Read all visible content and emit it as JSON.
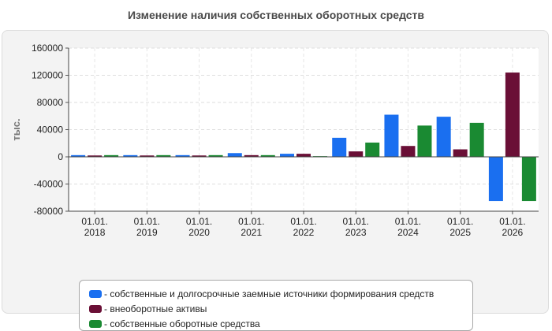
{
  "chart_data": {
    "type": "bar",
    "title": "Изменение наличия собственных оборотных средств",
    "ylabel": "тыс.",
    "xlabel": "",
    "ylim": [
      -80000,
      160000
    ],
    "yticks": [
      160000,
      120000,
      80000,
      40000,
      0,
      -40000,
      -80000
    ],
    "grid": true,
    "legend_position": "bottom",
    "categories": [
      {
        "line1": "01.01.",
        "line2": "2018"
      },
      {
        "line1": "01.01.",
        "line2": "2019"
      },
      {
        "line1": "01.01.",
        "line2": "2020"
      },
      {
        "line1": "01.01.",
        "line2": "2021"
      },
      {
        "line1": "01.01.",
        "line2": "2022"
      },
      {
        "line1": "01.01.",
        "line2": "2023"
      },
      {
        "line1": "01.01.",
        "line2": "2024"
      },
      {
        "line1": "01.01.",
        "line2": "2025"
      },
      {
        "line1": "01.01.",
        "line2": "2026"
      }
    ],
    "series": [
      {
        "name": "- собственные и долгосрочные заемные источники формирования средств",
        "color": "#1a6ff0",
        "values": [
          2500,
          2500,
          2500,
          5500,
          4500,
          28000,
          62000,
          59000,
          -65000
        ]
      },
      {
        "name": "- внеоборотные активы",
        "color": "#6a0f36",
        "values": [
          2000,
          2000,
          2000,
          2500,
          4500,
          8000,
          16000,
          11000,
          124000
        ]
      },
      {
        "name": "- собственные оборотные средства",
        "color": "#1a8a32",
        "values": [
          2500,
          2500,
          2500,
          2500,
          1000,
          21000,
          46000,
          50000,
          -65000
        ]
      }
    ]
  }
}
